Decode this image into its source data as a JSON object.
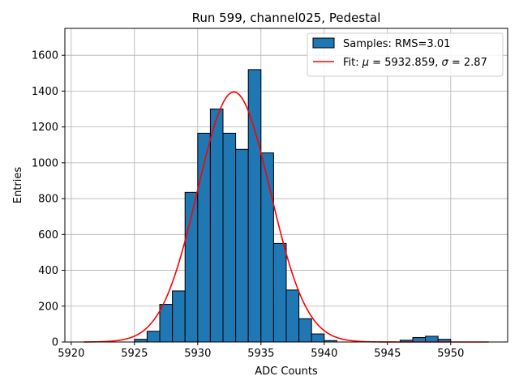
{
  "chart_data": {
    "type": "bar",
    "title": "Run 599, channel025, Pedestal",
    "xlabel": "ADC Counts",
    "ylabel": "Entries",
    "xlim": [
      5919.5,
      5954.5
    ],
    "ylim": [
      0,
      1750
    ],
    "xticks": [
      5920,
      5925,
      5930,
      5935,
      5940,
      5945,
      5950
    ],
    "yticks": [
      0,
      200,
      400,
      600,
      800,
      1000,
      1200,
      1400,
      1600
    ],
    "grid": true,
    "legend_position": "top-right",
    "colors": {
      "bars": "#1f77b4",
      "fit": "#ff0000"
    },
    "series": [
      {
        "name": "Samples: RMS=3.01",
        "type": "histogram",
        "bin_width": 1,
        "bins": [
          {
            "x": 5925,
            "count": 15
          },
          {
            "x": 5926,
            "count": 60
          },
          {
            "x": 5927,
            "count": 210
          },
          {
            "x": 5928,
            "count": 285
          },
          {
            "x": 5929,
            "count": 835
          },
          {
            "x": 5930,
            "count": 1165
          },
          {
            "x": 5931,
            "count": 1300
          },
          {
            "x": 5932,
            "count": 1165
          },
          {
            "x": 5933,
            "count": 1075
          },
          {
            "x": 5934,
            "count": 1520
          },
          {
            "x": 5935,
            "count": 1055
          },
          {
            "x": 5936,
            "count": 550
          },
          {
            "x": 5937,
            "count": 290
          },
          {
            "x": 5938,
            "count": 130
          },
          {
            "x": 5939,
            "count": 45
          },
          {
            "x": 5940,
            "count": 8
          },
          {
            "x": 5946,
            "count": 10
          },
          {
            "x": 5947,
            "count": 25
          },
          {
            "x": 5948,
            "count": 32
          },
          {
            "x": 5949,
            "count": 15
          }
        ]
      },
      {
        "name_prefix": "Fit: ",
        "name_mu": "μ",
        "name_mid": " = 5932.859, ",
        "name_sigma": "σ",
        "name_suffix": " = 2.87",
        "type": "line",
        "model": "gaussian",
        "mu": 5932.859,
        "sigma": 2.87,
        "amplitude": 1395,
        "x_range": [
          5921,
          5953
        ]
      }
    ]
  }
}
